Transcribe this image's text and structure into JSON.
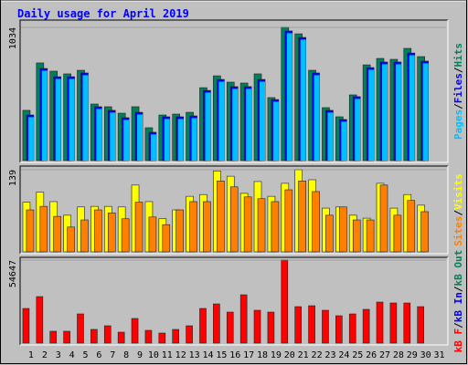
{
  "chart_data": [
    {
      "type": "bar",
      "title": "Daily usage for April 2019",
      "ylim": [
        0,
        1034
      ],
      "yticks": [
        1034
      ],
      "legend_separator": "/",
      "series": [
        {
          "name": "Hits",
          "color": "#00805c",
          "values": [
            390,
            758,
            694,
            673,
            701,
            439,
            418,
            368,
            418,
            255,
            354,
            361,
            375,
            566,
            658,
            609,
            602,
            673,
            489,
            1034,
            984,
            701,
            411,
            340,
            510,
            743,
            793,
            786,
            871,
            807,
            null
          ]
        },
        {
          "name": "Files",
          "color": "#0000ff",
          "values": [
            354,
            715,
            651,
            651,
            680,
            418,
            390,
            333,
            375,
            220,
            340,
            340,
            347,
            545,
            630,
            574,
            574,
            630,
            474,
            1006,
            956,
            680,
            390,
            319,
            496,
            722,
            765,
            765,
            835,
            772,
            null
          ]
        },
        {
          "name": "Pages",
          "color": "#00c0ff",
          "values": [
            344,
            705,
            641,
            641,
            670,
            408,
            380,
            323,
            365,
            210,
            330,
            330,
            337,
            535,
            620,
            564,
            564,
            620,
            464,
            996,
            946,
            670,
            380,
            309,
            486,
            712,
            755,
            755,
            825,
            762,
            null
          ]
        }
      ]
    },
    {
      "type": "bar",
      "ylim": [
        0,
        139
      ],
      "yticks": [
        139
      ],
      "legend_separator": "/",
      "series": [
        {
          "name": "Visits",
          "color": "#ffff00",
          "values": [
            84,
            101,
            85,
            62,
            76,
            77,
            77,
            76,
            113,
            85,
            56,
            71,
            94,
            97,
            137,
            128,
            99,
            119,
            94,
            116,
            139,
            122,
            74,
            76,
            62,
            57,
            116,
            74,
            97,
            79,
            null
          ]
        },
        {
          "name": "Sites",
          "color": "#ff8000",
          "values": [
            71,
            77,
            60,
            42,
            54,
            71,
            66,
            56,
            84,
            59,
            46,
            71,
            85,
            85,
            120,
            110,
            93,
            90,
            85,
            105,
            120,
            102,
            62,
            76,
            54,
            54,
            113,
            62,
            87,
            68,
            null
          ]
        }
      ]
    },
    {
      "type": "bar",
      "ylim": [
        0,
        54647
      ],
      "yticks": [
        54647
      ],
      "legend_separator": "/",
      "categories": [
        "1",
        "2",
        "3",
        "4",
        "5",
        "6",
        "7",
        "8",
        "9",
        "10",
        "11",
        "12",
        "13",
        "14",
        "15",
        "16",
        "17",
        "18",
        "19",
        "20",
        "21",
        "22",
        "23",
        "24",
        "25",
        "26",
        "27",
        "28",
        "29",
        "30",
        "31"
      ],
      "category_colors": [
        "#000000",
        "#000000",
        "#000000",
        "#000000",
        "#000000",
        "#008040",
        "#008040",
        "#000000",
        "#000000",
        "#000000",
        "#000000",
        "#000000",
        "#008040",
        "#008040",
        "#000000",
        "#000000",
        "#000000",
        "#000000",
        "#000000",
        "#008040",
        "#008040",
        "#000000",
        "#000000",
        "#000000",
        "#000000",
        "#000000",
        "#008040",
        "#008040",
        "#000000",
        "#000000",
        "#000000"
      ],
      "series": [
        {
          "name": "kB F",
          "color": "#ff0000",
          "values": [
            22800,
            30600,
            7800,
            7800,
            19200,
            9000,
            11400,
            7200,
            16200,
            8400,
            6600,
            9000,
            11400,
            22800,
            25800,
            20400,
            31800,
            21600,
            20400,
            54647,
            24000,
            24600,
            21600,
            18000,
            19200,
            22200,
            27000,
            26400,
            26400,
            24000,
            null
          ]
        },
        {
          "name": "kB In",
          "color": "#0000ff",
          "values": [
            null,
            null,
            null,
            null,
            null,
            null,
            null,
            null,
            null,
            null,
            null,
            null,
            null,
            null,
            null,
            null,
            null,
            null,
            null,
            null,
            null,
            null,
            null,
            null,
            null,
            null,
            null,
            null,
            null,
            null,
            null
          ]
        },
        {
          "name": "kB Out",
          "color": "#00805c",
          "values": [
            null,
            null,
            null,
            null,
            null,
            null,
            null,
            null,
            null,
            null,
            null,
            null,
            null,
            null,
            null,
            null,
            null,
            null,
            null,
            null,
            null,
            null,
            null,
            null,
            null,
            null,
            null,
            null,
            null,
            null,
            null
          ]
        }
      ]
    }
  ]
}
